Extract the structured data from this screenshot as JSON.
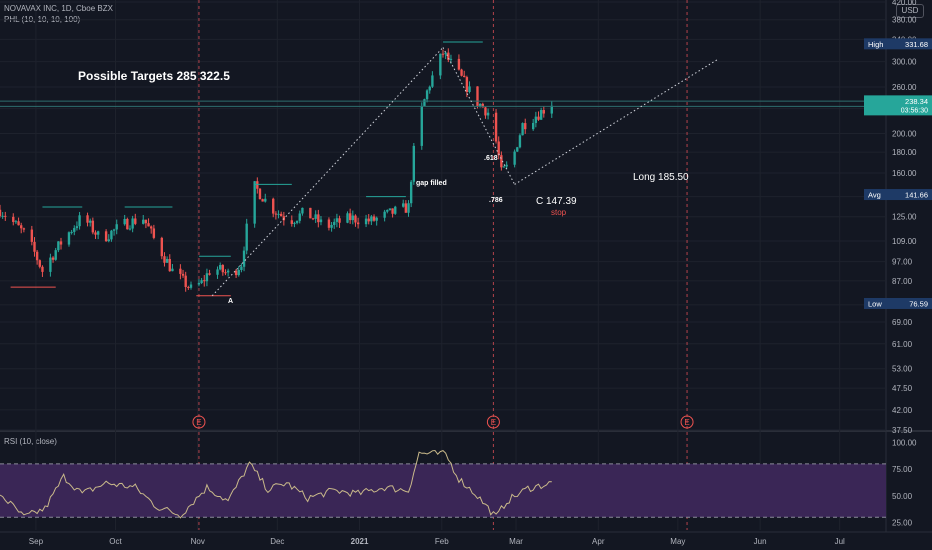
{
  "header": {
    "symbol_line": "NOVAVAX INC, 1D, Cboe BZX",
    "indicator_line": "PHL (10, 10, 10, 100)",
    "rsi_line": "RSI (10, close)",
    "currency": "USD"
  },
  "colors": {
    "background": "#131722",
    "up": "#26a69a",
    "down": "#ef5350",
    "grid": "#1e222d",
    "rsi_line": "#c9b98a",
    "rsi_band": "#3a2656",
    "price_badge": "#26a69a",
    "badge_bg": "#1e3a66"
  },
  "chart_data": [
    {
      "type": "candlestick",
      "scale": "log",
      "ylim": [
        37.5,
        420
      ],
      "yticks": [
        37.5,
        42.0,
        47.5,
        53.0,
        61.0,
        69.0,
        76.0,
        87.0,
        97.0,
        109.0,
        125.0,
        140.0,
        160.0,
        180.0,
        200.0,
        230.0,
        260.0,
        300.0,
        340.0,
        380.0,
        420.0
      ],
      "xlabels": [
        "Sep",
        "Oct",
        "Nov",
        "Dec",
        "2021",
        "Feb",
        "Mar",
        "Apr",
        "May",
        "Jun",
        "Jul"
      ],
      "price_badges": [
        {
          "label": "High",
          "value": "331.68"
        },
        {
          "label": "",
          "value": "238.34",
          "sub": "03:56:30"
        },
        {
          "label": "Avg",
          "value": "141.66"
        },
        {
          "label": "Low",
          "value": "76.59"
        }
      ],
      "annotations": [
        {
          "text": "Possible Targets  285  322.5"
        },
        {
          "text": "gap filled"
        },
        {
          "text": ".618"
        },
        {
          "text": ".786"
        },
        {
          "text": "C 147.39"
        },
        {
          "text": "stop"
        },
        {
          "text": "Long 185.50"
        },
        {
          "text": "A"
        }
      ],
      "earnings_marker": "E",
      "anchors": [
        {
          "date": "2020-08-26",
          "close": 130
        },
        {
          "date": "2020-09-05",
          "close": 112
        },
        {
          "date": "2020-09-11",
          "close": 92
        },
        {
          "date": "2020-09-18",
          "close": 108
        },
        {
          "date": "2020-09-26",
          "close": 125
        },
        {
          "date": "2020-10-03",
          "close": 110
        },
        {
          "date": "2020-10-12",
          "close": 120
        },
        {
          "date": "2020-10-19",
          "close": 124
        },
        {
          "date": "2020-10-24",
          "close": 107
        },
        {
          "date": "2020-10-30",
          "close": 92
        },
        {
          "date": "2020-11-06",
          "close": 83
        },
        {
          "date": "2020-11-10",
          "close": 86
        },
        {
          "date": "2020-11-14",
          "close": 94
        },
        {
          "date": "2020-11-21",
          "close": 90
        },
        {
          "date": "2020-11-25",
          "close": 96
        },
        {
          "date": "2020-11-30",
          "close": 148
        },
        {
          "date": "2020-12-06",
          "close": 132
        },
        {
          "date": "2020-12-13",
          "close": 122
        },
        {
          "date": "2020-12-19",
          "close": 128
        },
        {
          "date": "2020-12-27",
          "close": 118
        },
        {
          "date": "2021-01-05",
          "close": 124
        },
        {
          "date": "2021-01-13",
          "close": 122
        },
        {
          "date": "2021-01-21",
          "close": 128
        },
        {
          "date": "2021-01-27",
          "close": 132
        },
        {
          "date": "2021-01-30",
          "close": 205
        },
        {
          "date": "2021-02-04",
          "close": 265
        },
        {
          "date": "2021-02-09",
          "close": 315
        },
        {
          "date": "2021-02-14",
          "close": 285
        },
        {
          "date": "2021-02-21",
          "close": 242
        },
        {
          "date": "2021-02-27",
          "close": 222
        },
        {
          "date": "2021-03-03",
          "close": 160
        },
        {
          "date": "2021-03-07",
          "close": 170
        },
        {
          "date": "2021-03-11",
          "close": 210
        },
        {
          "date": "2021-03-18",
          "close": 226
        },
        {
          "date": "2021-03-22",
          "close": 238
        }
      ]
    },
    {
      "type": "line",
      "title": "RSI (10, close)",
      "ylim": [
        18,
        108
      ],
      "yticks": [
        25.0,
        50.0,
        75.0,
        100.0
      ],
      "band": [
        30,
        80
      ],
      "anchors": [
        {
          "date": "2020-08-26",
          "value": 52
        },
        {
          "date": "2020-09-04",
          "value": 30
        },
        {
          "date": "2020-09-12",
          "value": 38
        },
        {
          "date": "2020-09-19",
          "value": 68
        },
        {
          "date": "2020-09-26",
          "value": 52
        },
        {
          "date": "2020-10-05",
          "value": 62
        },
        {
          "date": "2020-10-16",
          "value": 58
        },
        {
          "date": "2020-10-24",
          "value": 40
        },
        {
          "date": "2020-11-02",
          "value": 32
        },
        {
          "date": "2020-11-12",
          "value": 58
        },
        {
          "date": "2020-11-20",
          "value": 45
        },
        {
          "date": "2020-11-28",
          "value": 80
        },
        {
          "date": "2020-12-05",
          "value": 56
        },
        {
          "date": "2020-12-12",
          "value": 62
        },
        {
          "date": "2020-12-20",
          "value": 48
        },
        {
          "date": "2020-12-30",
          "value": 55
        },
        {
          "date": "2021-01-08",
          "value": 52
        },
        {
          "date": "2021-01-18",
          "value": 58
        },
        {
          "date": "2021-01-27",
          "value": 55
        },
        {
          "date": "2021-01-31",
          "value": 90
        },
        {
          "date": "2021-02-10",
          "value": 89
        },
        {
          "date": "2021-02-15",
          "value": 66
        },
        {
          "date": "2021-02-22",
          "value": 50
        },
        {
          "date": "2021-03-01",
          "value": 30
        },
        {
          "date": "2021-03-05",
          "value": 45
        },
        {
          "date": "2021-03-13",
          "value": 57
        },
        {
          "date": "2021-03-22",
          "value": 62
        }
      ]
    }
  ]
}
